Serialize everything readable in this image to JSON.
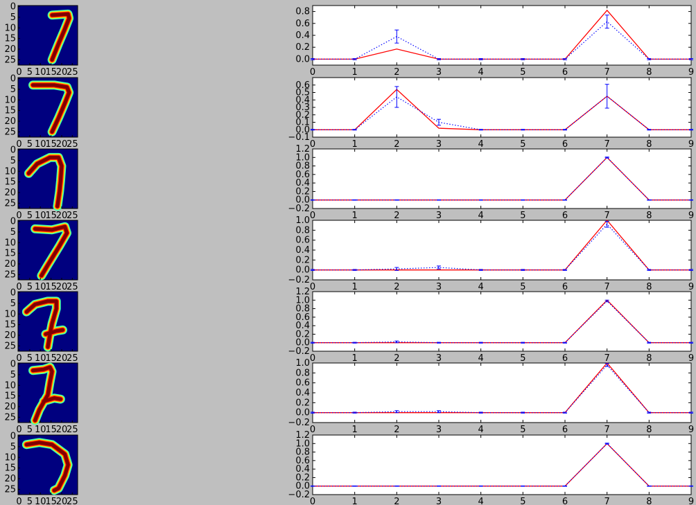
{
  "colors": {
    "figure_bg": "#bfbfbf",
    "image_bg": "#00007f",
    "mean_line": "#0000ff",
    "target_line": "#ff0000",
    "stroke_core": "#800000",
    "stroke_mid": "#ff2000",
    "stroke_edge": "#ffe000",
    "stroke_outer": "#40ffb0"
  },
  "image_panel": {
    "x_ticks": [
      "0",
      "5",
      "10",
      "15",
      "20",
      "25"
    ],
    "y_ticks": [
      "0",
      "5",
      "10",
      "15",
      "20",
      "25"
    ]
  },
  "chart_data": [
    {
      "type": "line",
      "x": [
        0,
        1,
        2,
        3,
        4,
        5,
        6,
        7,
        8,
        9
      ],
      "xlim": [
        0,
        9
      ],
      "ylim": [
        -0.1,
        0.9
      ],
      "yticks": [
        "0.0",
        "0.2",
        "0.4",
        "0.6",
        "0.8"
      ],
      "mean": [
        0,
        0,
        0.38,
        0,
        0,
        0,
        0,
        0.63,
        0,
        0
      ],
      "err": [
        0.01,
        0.01,
        0.11,
        0.01,
        0.01,
        0.01,
        0.01,
        0.11,
        0.01,
        0.01
      ],
      "target": [
        0,
        0,
        0.17,
        0,
        0,
        0,
        0,
        0.82,
        0,
        0
      ]
    },
    {
      "type": "line",
      "x": [
        0,
        1,
        2,
        3,
        4,
        5,
        6,
        7,
        8,
        9
      ],
      "xlim": [
        0,
        9
      ],
      "ylim": [
        -0.1,
        0.7
      ],
      "yticks": [
        "−0.1",
        "0.0",
        "0.1",
        "0.2",
        "0.3",
        "0.4",
        "0.5",
        "0.6"
      ],
      "mean": [
        0,
        0,
        0.44,
        0.1,
        0,
        0,
        0,
        0.45,
        0,
        0
      ],
      "err": [
        0.005,
        0.005,
        0.14,
        0.04,
        0.005,
        0.005,
        0.005,
        0.16,
        0.005,
        0.005
      ],
      "target": [
        0,
        0,
        0.54,
        0.02,
        0,
        0,
        0,
        0.45,
        0,
        0
      ]
    },
    {
      "type": "line",
      "x": [
        0,
        1,
        2,
        3,
        4,
        5,
        6,
        7,
        8,
        9
      ],
      "xlim": [
        0,
        9
      ],
      "ylim": [
        -0.2,
        1.2
      ],
      "yticks": [
        "−0.2",
        "0.0",
        "0.2",
        "0.4",
        "0.6",
        "0.8",
        "1.0",
        "1.2"
      ],
      "mean": [
        0,
        0,
        0,
        0,
        0,
        0,
        0,
        1.0,
        0,
        0
      ],
      "err": [
        0.005,
        0.005,
        0.005,
        0.005,
        0.005,
        0.005,
        0.005,
        0.01,
        0.005,
        0.005
      ],
      "target": [
        0,
        0,
        0,
        0,
        0,
        0,
        0,
        1.0,
        0,
        0
      ]
    },
    {
      "type": "line",
      "x": [
        0,
        1,
        2,
        3,
        4,
        5,
        6,
        7,
        8,
        9
      ],
      "xlim": [
        0,
        9
      ],
      "ylim": [
        -0.2,
        1.0
      ],
      "yticks": [
        "−0.2",
        "0.0",
        "0.2",
        "0.4",
        "0.6",
        "0.8",
        "1.0"
      ],
      "mean": [
        0,
        0,
        0.02,
        0.05,
        0,
        0,
        0,
        0.92,
        0,
        0
      ],
      "err": [
        0.01,
        0.01,
        0.03,
        0.03,
        0.01,
        0.01,
        0.01,
        0.06,
        0.01,
        0.01
      ],
      "target": [
        0,
        0,
        0,
        0,
        0,
        0,
        0,
        1.0,
        0,
        0
      ]
    },
    {
      "type": "line",
      "x": [
        0,
        1,
        2,
        3,
        4,
        5,
        6,
        7,
        8,
        9
      ],
      "xlim": [
        0,
        9
      ],
      "ylim": [
        -0.2,
        1.2
      ],
      "yticks": [
        "−0.2",
        "0.0",
        "0.2",
        "0.4",
        "0.6",
        "0.8",
        "1.0",
        "1.2"
      ],
      "mean": [
        0,
        0,
        0.02,
        0,
        0,
        0,
        0,
        0.98,
        0,
        0
      ],
      "err": [
        0.01,
        0.01,
        0.02,
        0.01,
        0.01,
        0.01,
        0.01,
        0.02,
        0.01,
        0.01
      ],
      "target": [
        0,
        0,
        0,
        0,
        0,
        0,
        0,
        1.0,
        0,
        0
      ]
    },
    {
      "type": "line",
      "x": [
        0,
        1,
        2,
        3,
        4,
        5,
        6,
        7,
        8,
        9
      ],
      "xlim": [
        0,
        9
      ],
      "ylim": [
        -0.2,
        1.0
      ],
      "yticks": [
        "−0.2",
        "0.0",
        "0.2",
        "0.4",
        "0.6",
        "0.8",
        "1.0"
      ],
      "mean": [
        0,
        0,
        0.02,
        0.02,
        0,
        0,
        0,
        0.96,
        0,
        0
      ],
      "err": [
        0.01,
        0.01,
        0.02,
        0.02,
        0.01,
        0.01,
        0.01,
        0.03,
        0.01,
        0.01
      ],
      "target": [
        0,
        0,
        0,
        0,
        0,
        0,
        0,
        1.0,
        0,
        0
      ]
    },
    {
      "type": "line",
      "x": [
        0,
        1,
        2,
        3,
        4,
        5,
        6,
        7,
        8,
        9
      ],
      "xlim": [
        0,
        9
      ],
      "ylim": [
        -0.2,
        1.2
      ],
      "yticks": [
        "−0.2",
        "0.0",
        "0.2",
        "0.4",
        "0.6",
        "0.8",
        "1.0",
        "1.2"
      ],
      "mean": [
        0,
        0,
        0,
        0,
        0,
        0,
        0,
        1.0,
        0,
        0
      ],
      "err": [
        0.005,
        0.005,
        0.005,
        0.005,
        0.005,
        0.005,
        0.005,
        0.01,
        0.005,
        0.005
      ],
      "target": [
        0,
        0,
        0,
        0,
        0,
        0,
        0,
        1.0,
        0,
        0
      ]
    }
  ]
}
